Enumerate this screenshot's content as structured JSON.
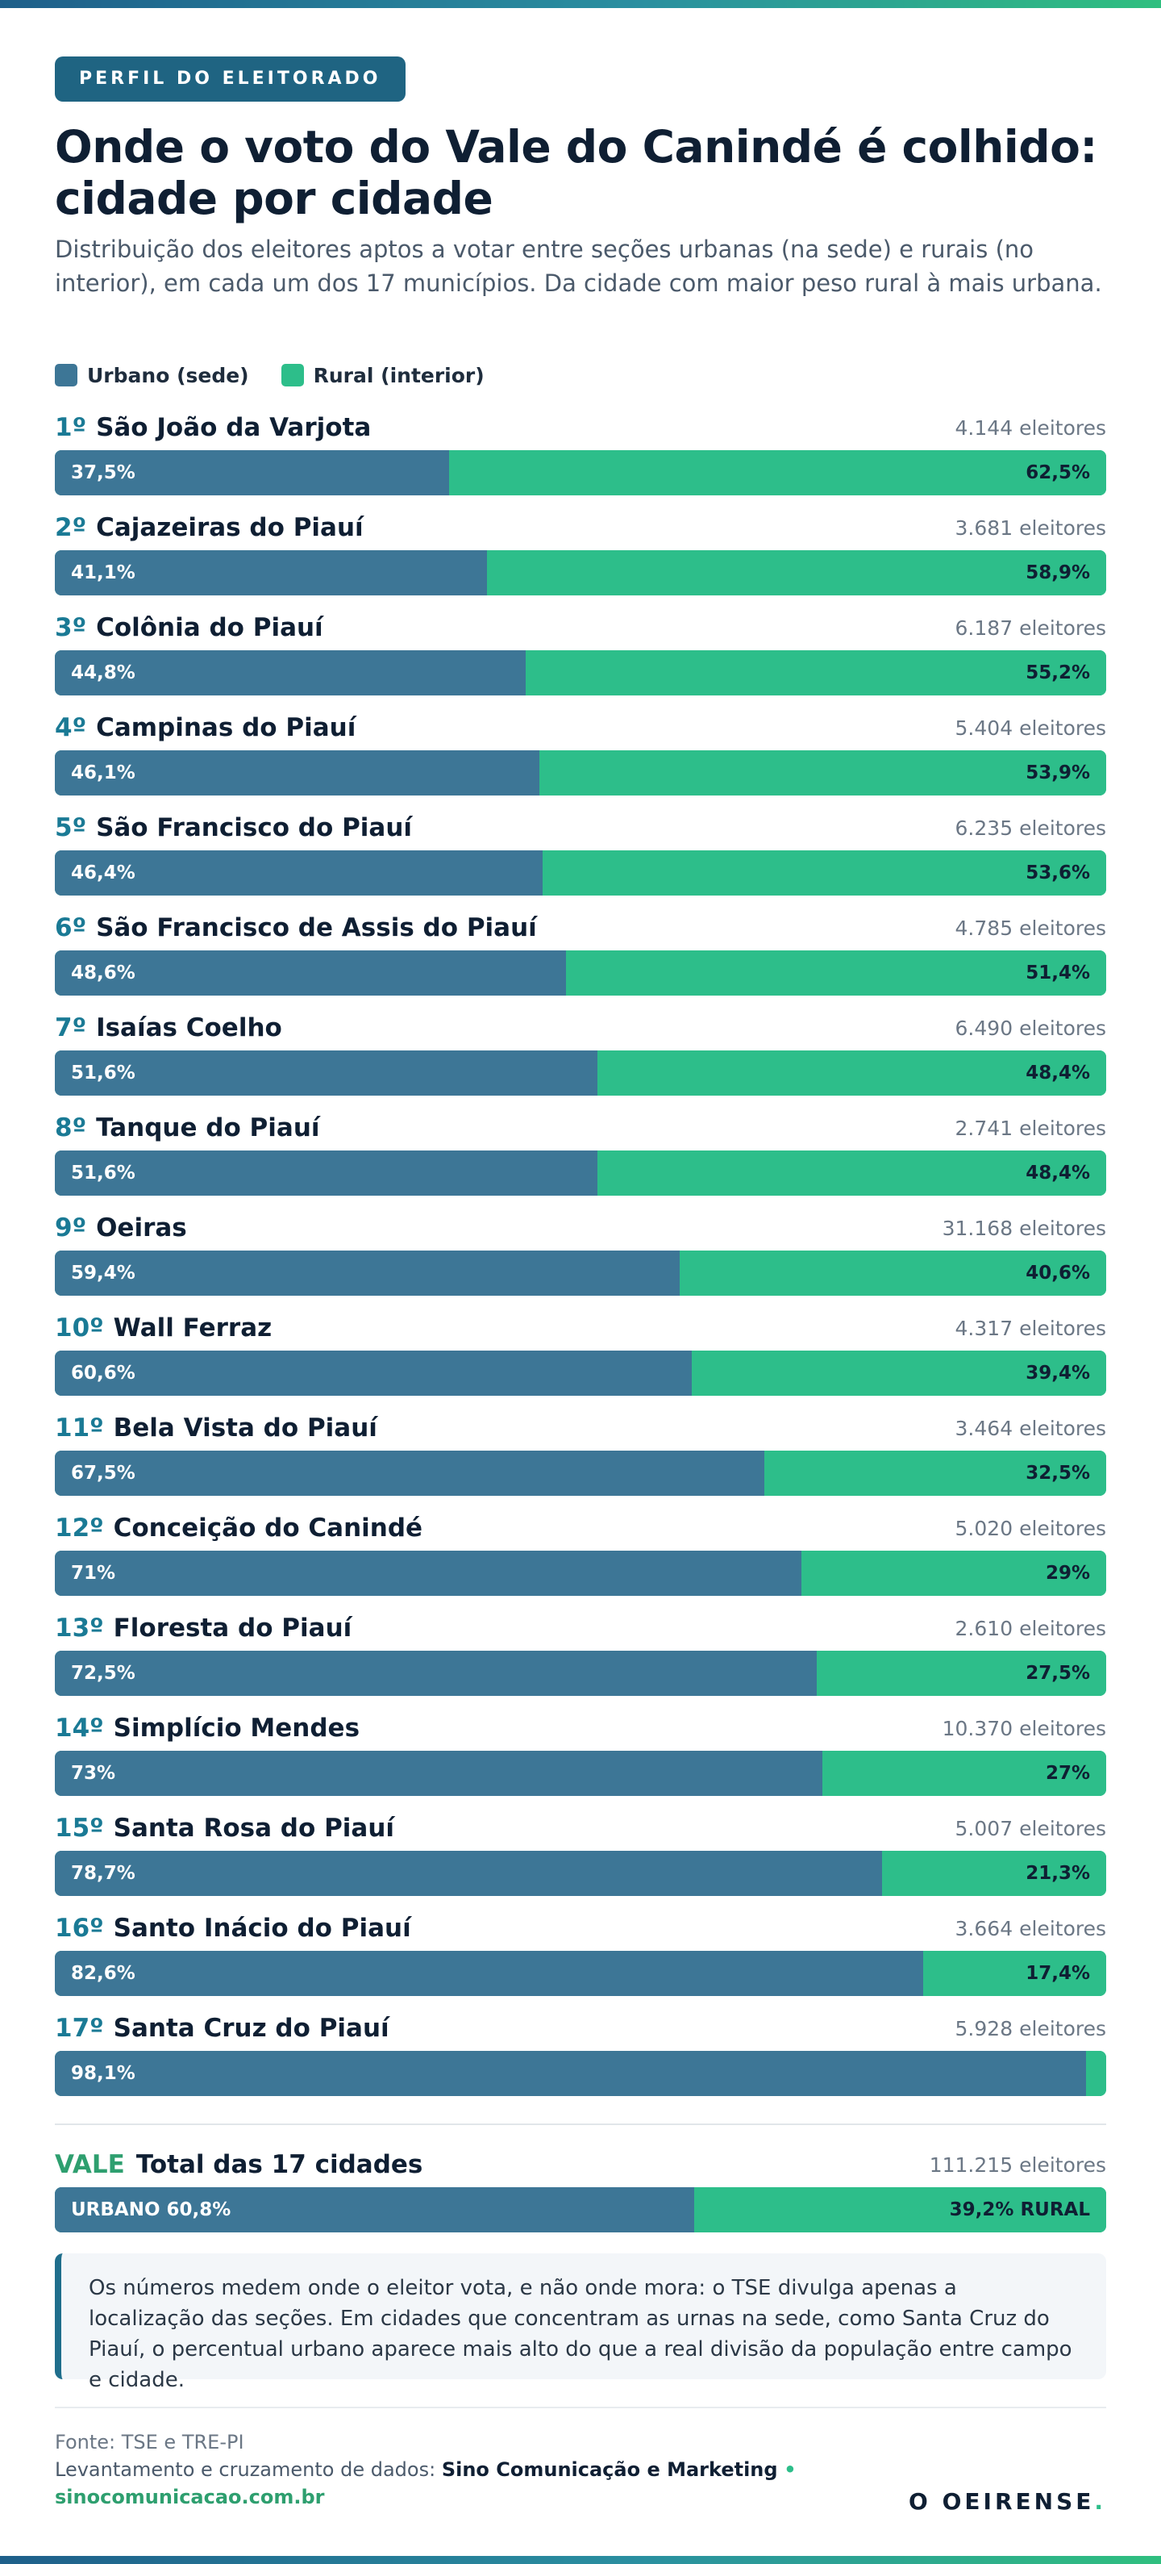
{
  "colors": {
    "urban": "#3d7696",
    "rural": "#2dbe8a",
    "accent": "#1f6482",
    "vale": "#2e9f6f"
  },
  "kicker": "PERFIL DO ELEITORADO",
  "title": "Onde o voto do Vale do Canindé é colhido: cidade por cidade",
  "subtitle": "Distribuição dos eleitores aptos a votar entre seções urbanas (na sede) e rurais (no interior), em cada um dos 17 municípios. Da cidade com maior peso rural à mais urbana.",
  "legend": {
    "urban": "Urbano (sede)",
    "rural": "Rural (interior)"
  },
  "voters_unit": "eleitores",
  "chart_data": {
    "type": "bar",
    "stacked": true,
    "orientation": "horizontal",
    "title": "Onde o voto do Vale do Canindé é colhido: cidade por cidade",
    "categories": [
      "São João da Varjota",
      "Cajazeiras do Piauí",
      "Colônia do Piauí",
      "Campinas do Piauí",
      "São Francisco do Piauí",
      "São Francisco de Assis do Piauí",
      "Isaías Coelho",
      "Tanque do Piauí",
      "Oeiras",
      "Wall Ferraz",
      "Bela Vista do Piauí",
      "Conceição do Canindé",
      "Floresta do Piauí",
      "Simplício Mendes",
      "Santa Rosa do Piauí",
      "Santo Inácio do Piauí",
      "Santa Cruz do Piauí"
    ],
    "series": [
      {
        "name": "Urbano (sede)",
        "values": [
          37.5,
          41.1,
          44.8,
          46.1,
          46.4,
          48.6,
          51.6,
          51.6,
          59.4,
          60.6,
          67.5,
          71,
          72.5,
          73,
          78.7,
          82.6,
          98.1
        ]
      },
      {
        "name": "Rural (interior)",
        "values": [
          62.5,
          58.9,
          55.2,
          53.9,
          53.6,
          51.4,
          48.4,
          48.4,
          40.6,
          39.4,
          32.5,
          29,
          27.5,
          27,
          21.3,
          17.4,
          1.9
        ]
      }
    ],
    "rows": [
      {
        "rank": "1º",
        "city": "São João da Varjota",
        "voters": "4.144",
        "urban": 37.5,
        "rural": 62.5,
        "urban_label": "37,5%",
        "rural_label": "62,5%"
      },
      {
        "rank": "2º",
        "city": "Cajazeiras do Piauí",
        "voters": "3.681",
        "urban": 41.1,
        "rural": 58.9,
        "urban_label": "41,1%",
        "rural_label": "58,9%"
      },
      {
        "rank": "3º",
        "city": "Colônia do Piauí",
        "voters": "6.187",
        "urban": 44.8,
        "rural": 55.2,
        "urban_label": "44,8%",
        "rural_label": "55,2%"
      },
      {
        "rank": "4º",
        "city": "Campinas do Piauí",
        "voters": "5.404",
        "urban": 46.1,
        "rural": 53.9,
        "urban_label": "46,1%",
        "rural_label": "53,9%"
      },
      {
        "rank": "5º",
        "city": "São Francisco do Piauí",
        "voters": "6.235",
        "urban": 46.4,
        "rural": 53.6,
        "urban_label": "46,4%",
        "rural_label": "53,6%"
      },
      {
        "rank": "6º",
        "city": "São Francisco de Assis do Piauí",
        "voters": "4.785",
        "urban": 48.6,
        "rural": 51.4,
        "urban_label": "48,6%",
        "rural_label": "51,4%"
      },
      {
        "rank": "7º",
        "city": "Isaías Coelho",
        "voters": "6.490",
        "urban": 51.6,
        "rural": 48.4,
        "urban_label": "51,6%",
        "rural_label": "48,4%"
      },
      {
        "rank": "8º",
        "city": "Tanque do Piauí",
        "voters": "2.741",
        "urban": 51.6,
        "rural": 48.4,
        "urban_label": "51,6%",
        "rural_label": "48,4%"
      },
      {
        "rank": "9º",
        "city": "Oeiras",
        "voters": "31.168",
        "urban": 59.4,
        "rural": 40.6,
        "urban_label": "59,4%",
        "rural_label": "40,6%"
      },
      {
        "rank": "10º",
        "city": "Wall Ferraz",
        "voters": "4.317",
        "urban": 60.6,
        "rural": 39.4,
        "urban_label": "60,6%",
        "rural_label": "39,4%"
      },
      {
        "rank": "11º",
        "city": "Bela Vista do Piauí",
        "voters": "3.464",
        "urban": 67.5,
        "rural": 32.5,
        "urban_label": "67,5%",
        "rural_label": "32,5%"
      },
      {
        "rank": "12º",
        "city": "Conceição do Canindé",
        "voters": "5.020",
        "urban": 71,
        "rural": 29,
        "urban_label": "71%",
        "rural_label": "29%"
      },
      {
        "rank": "13º",
        "city": "Floresta do Piauí",
        "voters": "2.610",
        "urban": 72.5,
        "rural": 27.5,
        "urban_label": "72,5%",
        "rural_label": "27,5%"
      },
      {
        "rank": "14º",
        "city": "Simplício Mendes",
        "voters": "10.370",
        "urban": 73,
        "rural": 27,
        "urban_label": "73%",
        "rural_label": "27%"
      },
      {
        "rank": "15º",
        "city": "Santa Rosa do Piauí",
        "voters": "5.007",
        "urban": 78.7,
        "rural": 21.3,
        "urban_label": "78,7%",
        "rural_label": "21,3%"
      },
      {
        "rank": "16º",
        "city": "Santo Inácio do Piauí",
        "voters": "3.664",
        "urban": 82.6,
        "rural": 17.4,
        "urban_label": "82,6%",
        "rural_label": "17,4%"
      },
      {
        "rank": "17º",
        "city": "Santa Cruz do Piauí",
        "voters": "5.928",
        "urban": 98.1,
        "rural": 1.9,
        "urban_label": "98,1%",
        "rural_label": ""
      }
    ],
    "total": {
      "tag": "VALE",
      "label": "Total das 17 cidades",
      "voters": "111.215",
      "urban": 60.8,
      "rural": 39.2,
      "urban_label": "URBANO 60,8%",
      "rural_label": "39,2% RURAL"
    },
    "xlim": [
      0,
      100
    ],
    "legend": "top-left"
  },
  "note": "Os números medem onde o eleitor vota, e não onde mora: o TSE divulga apenas a localização das seções. Em cidades que concentram as urnas na sede, como Santa Cruz do Piauí, o percentual urbano aparece mais alto do que a real divisão da população entre campo e cidade.",
  "footer": {
    "source": "Fonte: TSE e TRE-PI",
    "credit_prefix": "Levantamento e cruzamento de dados:",
    "credit_name": "Sino Comunicação e Marketing",
    "credit_dot": "•",
    "site": "sinocomunicacao.com.br",
    "brand": "O OEIRENSE",
    "brand_dot": "."
  }
}
